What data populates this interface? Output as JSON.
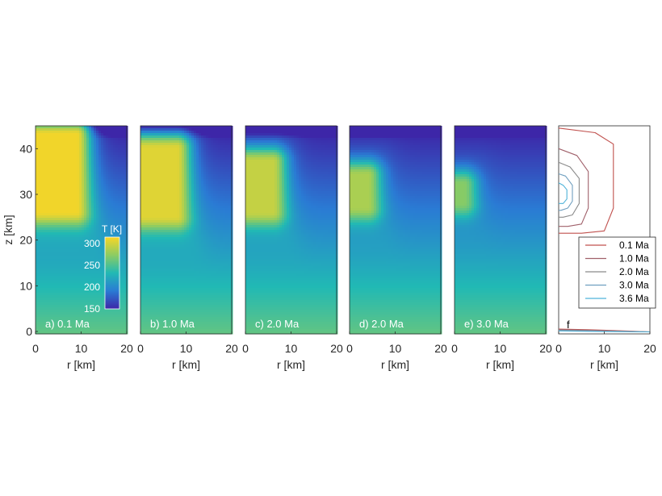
{
  "colors": {
    "background": "#ffffff",
    "axis": "#262626",
    "heatmap_low": "#3d26a8",
    "heatmap_mid": "#21b9b4",
    "heatmap_high": "#f9d626",
    "contour_0_1": "#c0504d",
    "contour_1_0": "#a0606a",
    "contour_2_0": "#8a8a8a",
    "contour_3_0": "#6f9fbf",
    "contour_3_6": "#4fb3d9"
  },
  "chart_data": [
    {
      "type": "heatmap",
      "panel_label": "a) 0.1 Ma",
      "xlabel": "r [km]",
      "ylabel": "z [km]",
      "xlim": [
        0,
        20
      ],
      "ylim": [
        0,
        45
      ],
      "xticks": [
        "0",
        "10",
        "20"
      ],
      "yticks": [
        "0",
        "10",
        "20",
        "30",
        "40"
      ],
      "hot_region": {
        "r_max": 9,
        "z_min": 25,
        "z_max": 44,
        "T_max": 312
      },
      "colorbar": {
        "label": "T [K]",
        "ticks": [
          "300",
          "250",
          "200",
          "150"
        ],
        "range": [
          150,
          315
        ]
      }
    },
    {
      "type": "heatmap",
      "panel_label": "b) 1.0 Ma",
      "xlabel": "r [km]",
      "xlim": [
        0,
        20
      ],
      "ylim": [
        0,
        45
      ],
      "xticks": [
        "0",
        "10",
        "20"
      ],
      "hot_region": {
        "r_max": 8,
        "z_min": 24,
        "z_max": 41,
        "T_max": 305
      }
    },
    {
      "type": "heatmap",
      "panel_label": "c) 2.0 Ma",
      "xlabel": "r [km]",
      "xlim": [
        0,
        20
      ],
      "ylim": [
        0,
        45
      ],
      "xticks": [
        "0",
        "10",
        "20"
      ],
      "hot_region": {
        "r_max": 6,
        "z_min": 25,
        "z_max": 38,
        "T_max": 295
      }
    },
    {
      "type": "heatmap",
      "panel_label": "d) 2.0 Ma",
      "xlabel": "r [km]",
      "xlim": [
        0,
        20
      ],
      "ylim": [
        0,
        45
      ],
      "xticks": [
        "0",
        "10",
        "20"
      ],
      "hot_region": {
        "r_max": 4,
        "z_min": 26,
        "z_max": 35,
        "T_max": 285
      }
    },
    {
      "type": "heatmap",
      "panel_label": "e) 3.0 Ma",
      "xlabel": "r [km]",
      "xlim": [
        0,
        20
      ],
      "ylim": [
        0,
        45
      ],
      "xticks": [
        "0",
        "10",
        "20"
      ],
      "hot_region": {
        "r_max": 2,
        "z_min": 27,
        "z_max": 33,
        "T_max": 272
      }
    },
    {
      "type": "line",
      "panel_label": "f",
      "xlabel": "r [km]",
      "xlim": [
        0,
        20
      ],
      "ylim": [
        0,
        45
      ],
      "xticks": [
        "0",
        "10",
        "20"
      ],
      "legend_position": "right",
      "series": [
        {
          "name": "0.1 Ma",
          "r": [
            0,
            8,
            12,
            12,
            10,
            5,
            0
          ],
          "z": [
            44.5,
            43.5,
            41,
            27,
            22,
            21.5,
            21.5
          ]
        },
        {
          "name": "1.0 Ma",
          "r": [
            0,
            4,
            6.5,
            6.5,
            5,
            2,
            0
          ],
          "z": [
            40,
            38.5,
            35,
            27,
            23.5,
            23,
            23
          ]
        },
        {
          "name": "2.0 Ma",
          "r": [
            0,
            2.5,
            4.5,
            4.5,
            3,
            1,
            0
          ],
          "z": [
            37,
            36,
            33.5,
            28,
            25.5,
            25,
            25
          ]
        },
        {
          "name": "3.0 Ma",
          "r": [
            0,
            1.5,
            3,
            3,
            2,
            0.5,
            0
          ],
          "z": [
            34.5,
            34,
            32,
            28.5,
            27,
            26.5,
            26.5
          ]
        },
        {
          "name": "3.6 Ma",
          "r": [
            0,
            1,
            1.8,
            1.8,
            1,
            0
          ],
          "z": [
            32.5,
            32,
            31,
            29,
            28,
            28
          ]
        }
      ]
    }
  ]
}
